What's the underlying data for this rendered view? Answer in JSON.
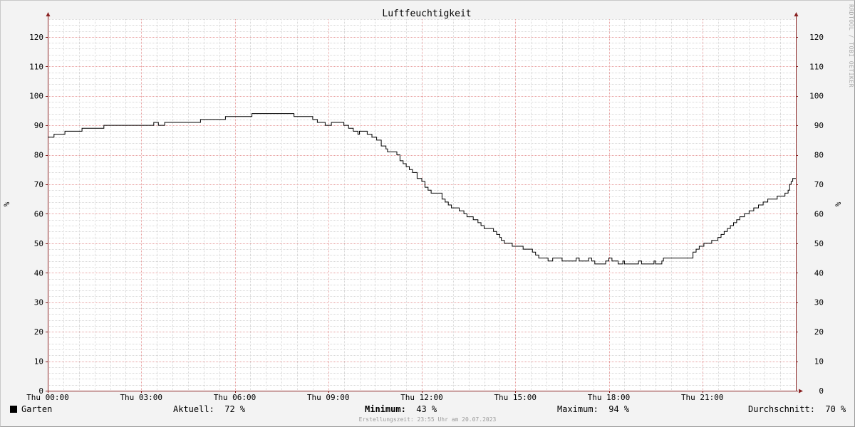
{
  "chart_data": {
    "type": "line",
    "title": "Luftfeuchtigkeit",
    "ylabel": "%",
    "ylim": [
      0,
      126
    ],
    "yticks": [
      0,
      10,
      20,
      30,
      40,
      50,
      60,
      70,
      80,
      90,
      100,
      110,
      120
    ],
    "xlim": [
      0,
      24
    ],
    "xticks": [
      {
        "hour": 0,
        "label": "Thu 00:00"
      },
      {
        "hour": 3,
        "label": "Thu 03:00"
      },
      {
        "hour": 6,
        "label": "Thu 06:00"
      },
      {
        "hour": 9,
        "label": "Thu 09:00"
      },
      {
        "hour": 12,
        "label": "Thu 12:00"
      },
      {
        "hour": 15,
        "label": "Thu 15:00"
      },
      {
        "hour": 18,
        "label": "Thu 18:00"
      },
      {
        "hour": 21,
        "label": "Thu 21:00"
      }
    ],
    "grid": true,
    "series": [
      {
        "name": "Garten",
        "color": "#000000",
        "points": [
          [
            0,
            86
          ],
          [
            0.2,
            87
          ],
          [
            0.55,
            88
          ],
          [
            1.1,
            89
          ],
          [
            1.8,
            90
          ],
          [
            3.4,
            91
          ],
          [
            3.55,
            90
          ],
          [
            3.75,
            91
          ],
          [
            4.9,
            92
          ],
          [
            5.7,
            93
          ],
          [
            6.55,
            94
          ],
          [
            7.9,
            93
          ],
          [
            8.5,
            92
          ],
          [
            8.65,
            91
          ],
          [
            8.9,
            90
          ],
          [
            9.1,
            91
          ],
          [
            9.5,
            90
          ],
          [
            9.65,
            89
          ],
          [
            9.8,
            88
          ],
          [
            9.95,
            87
          ],
          [
            10.0,
            88
          ],
          [
            10.25,
            87
          ],
          [
            10.4,
            86
          ],
          [
            10.55,
            85
          ],
          [
            10.7,
            83
          ],
          [
            10.85,
            82
          ],
          [
            10.9,
            81
          ],
          [
            11.2,
            80
          ],
          [
            11.3,
            78
          ],
          [
            11.4,
            77
          ],
          [
            11.5,
            76
          ],
          [
            11.6,
            75
          ],
          [
            11.7,
            74
          ],
          [
            11.85,
            72
          ],
          [
            12.0,
            71
          ],
          [
            12.1,
            69
          ],
          [
            12.2,
            68
          ],
          [
            12.3,
            67
          ],
          [
            12.55,
            67
          ],
          [
            12.65,
            65
          ],
          [
            12.75,
            64
          ],
          [
            12.85,
            63
          ],
          [
            12.95,
            62
          ],
          [
            13.1,
            62
          ],
          [
            13.2,
            61
          ],
          [
            13.35,
            60
          ],
          [
            13.45,
            59
          ],
          [
            13.65,
            58
          ],
          [
            13.8,
            57
          ],
          [
            13.9,
            56
          ],
          [
            14.0,
            55
          ],
          [
            14.2,
            55
          ],
          [
            14.3,
            54
          ],
          [
            14.4,
            53
          ],
          [
            14.5,
            52
          ],
          [
            14.55,
            51
          ],
          [
            14.65,
            50
          ],
          [
            14.8,
            50
          ],
          [
            14.9,
            49
          ],
          [
            15.15,
            49
          ],
          [
            15.25,
            48
          ],
          [
            15.45,
            48
          ],
          [
            15.55,
            47
          ],
          [
            15.65,
            46
          ],
          [
            15.75,
            45
          ],
          [
            15.95,
            45
          ],
          [
            16.05,
            44
          ],
          [
            16.2,
            45
          ],
          [
            16.5,
            44
          ],
          [
            16.9,
            44
          ],
          [
            16.95,
            45
          ],
          [
            17.05,
            44
          ],
          [
            17.3,
            44
          ],
          [
            17.35,
            45
          ],
          [
            17.45,
            44
          ],
          [
            17.55,
            43
          ],
          [
            17.8,
            43
          ],
          [
            17.9,
            44
          ],
          [
            18.0,
            45
          ],
          [
            18.1,
            44
          ],
          [
            18.2,
            44
          ],
          [
            18.3,
            43
          ],
          [
            18.45,
            44
          ],
          [
            18.5,
            43
          ],
          [
            18.9,
            43
          ],
          [
            18.95,
            44
          ],
          [
            19.05,
            43
          ],
          [
            19.4,
            43
          ],
          [
            19.45,
            44
          ],
          [
            19.5,
            43
          ],
          [
            19.7,
            44
          ],
          [
            19.75,
            45
          ],
          [
            20.55,
            45
          ],
          [
            20.7,
            47
          ],
          [
            20.8,
            48
          ],
          [
            20.9,
            49
          ],
          [
            21.05,
            50
          ],
          [
            21.25,
            50
          ],
          [
            21.3,
            51
          ],
          [
            21.5,
            52
          ],
          [
            21.6,
            53
          ],
          [
            21.7,
            54
          ],
          [
            21.8,
            55
          ],
          [
            21.9,
            56
          ],
          [
            22.0,
            57
          ],
          [
            22.1,
            58
          ],
          [
            22.2,
            59
          ],
          [
            22.35,
            60
          ],
          [
            22.5,
            61
          ],
          [
            22.65,
            62
          ],
          [
            22.8,
            63
          ],
          [
            22.95,
            64
          ],
          [
            23.1,
            65
          ],
          [
            23.4,
            66
          ],
          [
            23.65,
            67
          ],
          [
            23.75,
            68
          ],
          [
            23.8,
            70
          ],
          [
            23.85,
            71
          ],
          [
            23.9,
            72
          ],
          [
            24.0,
            72
          ]
        ]
      }
    ]
  },
  "legend": {
    "series_name": "Garten",
    "current_label": "Aktuell:",
    "current_value": "72 %",
    "min_label": "Minimum:",
    "min_value": "43 %",
    "max_label": "Maximum:",
    "max_value": "94 %",
    "avg_label": "Durchschnitt:",
    "avg_value": "70 %"
  },
  "footer": {
    "created": "Erstellungszeit: 23:55 Uhr am 20.07.2023"
  },
  "watermark": "RRDTOOL / TOBI OETIKER",
  "colors": {
    "background": "#f3f3f3",
    "plot_background": "#ffffff",
    "minor_grid": "#d8d8d8",
    "major_grid": "#e8a0a0",
    "axis": "#8a2222",
    "line": "#000000"
  }
}
